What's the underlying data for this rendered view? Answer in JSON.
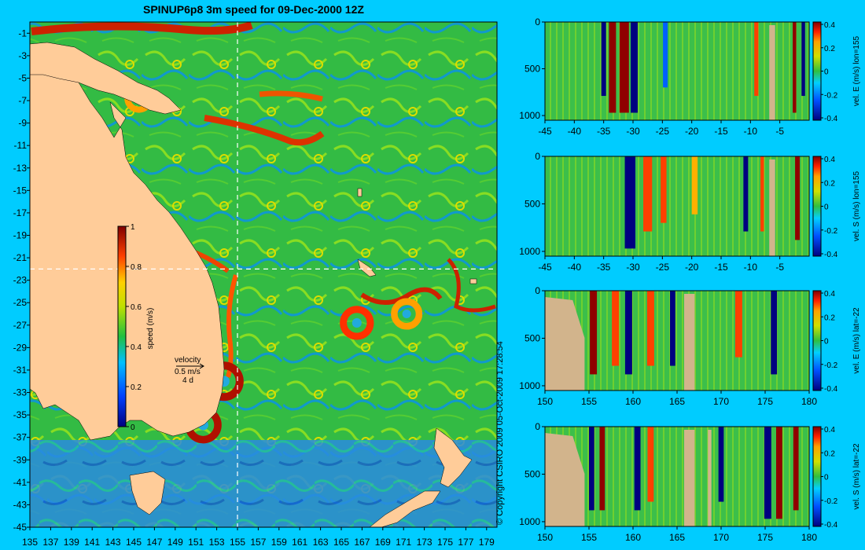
{
  "title": "SPINUP6p8 3m speed for 09-Dec-2000 12Z",
  "copyright": "© Copyright CSIRO 2009   05-Oct-2009 17:28:54",
  "colors": {
    "background": "#00ccff",
    "land": "#ffcc99",
    "section_land": "#d2b48c",
    "crosshair": "#ffffff"
  },
  "chart_data": [
    {
      "type": "heatmap",
      "name": "map",
      "title": "SPINUP6p8 3m speed for 09-Dec-2000 12Z",
      "xlim": [
        135,
        180
      ],
      "ylim": [
        -45,
        0
      ],
      "x_ticks": [
        "135",
        "137",
        "139",
        "141",
        "143",
        "145",
        "147",
        "149",
        "151",
        "153",
        "155",
        "157",
        "159",
        "161",
        "163",
        "165",
        "167",
        "169",
        "171",
        "173",
        "175",
        "177",
        "179"
      ],
      "y_ticks": [
        "-1",
        "-3",
        "-5",
        "-7",
        "-9",
        "-11",
        "-13",
        "-15",
        "-17",
        "-19",
        "-21",
        "-23",
        "-25",
        "-27",
        "-29",
        "-31",
        "-33",
        "-35",
        "-37",
        "-39",
        "-41",
        "-43",
        "-45"
      ],
      "crosshair": {
        "lon": 155,
        "lat": -22
      },
      "colorbar": {
        "label": "speed (m/s)",
        "min": 0,
        "max": 1,
        "ticks": [
          "1",
          "0.8",
          "0.6",
          "0.4",
          "0.2",
          "0"
        ]
      },
      "vector_legend": {
        "title": "velocity",
        "speed": "0.5 m/s",
        "duration": "4 d"
      },
      "features": [
        {
          "lon": 153.7,
          "lat": -32.0,
          "speed": 1.0
        },
        {
          "lon": 151.7,
          "lat": -35.9,
          "speed": 0.9
        },
        {
          "lon": 166.5,
          "lat": -26.8,
          "speed": 0.8
        },
        {
          "lon": 171.3,
          "lat": -26.0,
          "speed": 0.7
        },
        {
          "lon": 145.5,
          "lat": -6.8,
          "speed": 0.6
        },
        {
          "lon": 143.0,
          "lat": -12.5,
          "speed": 0.6
        }
      ]
    },
    {
      "type": "heatmap",
      "name": "section-1",
      "label": "vel. E (m/s) lon=155",
      "x_ticks": [
        "-45",
        "-40",
        "-35",
        "-30",
        "-25",
        "-20",
        "-15",
        "-10",
        "-5"
      ],
      "xlim": [
        -45,
        0
      ],
      "y_ticks": [
        "0",
        "500",
        "1000"
      ],
      "ylim": [
        0,
        1050
      ],
      "colorbar_ticks": [
        "0.4",
        "0.2",
        "0",
        "-0.2",
        "-0.4"
      ],
      "clim": [
        -0.4,
        0.4
      ],
      "bands": [
        {
          "x": -33.5,
          "w": 1.2,
          "v": 0.4
        },
        {
          "x": -31.5,
          "w": 1.6,
          "v": 0.4
        },
        {
          "x": -29.8,
          "w": 1.2,
          "v": -0.4
        },
        {
          "x": -35.0,
          "w": 0.8,
          "v": -0.3
        },
        {
          "x": -24.5,
          "w": 0.8,
          "v": -0.25
        },
        {
          "x": -9.0,
          "w": 0.7,
          "v": 0.3
        },
        {
          "x": -2.5,
          "w": 0.6,
          "v": 0.4
        },
        {
          "x": -1.0,
          "w": 0.6,
          "v": -0.3
        }
      ],
      "land": [
        {
          "x0": -6.8,
          "x1": -5.8
        }
      ]
    },
    {
      "type": "heatmap",
      "name": "section-2",
      "label": "vel. S (m/s) lon=155",
      "x_ticks": [
        "-45",
        "-40",
        "-35",
        "-30",
        "-25",
        "-20",
        "-15",
        "-10",
        "-5"
      ],
      "xlim": [
        -45,
        0
      ],
      "y_ticks": [
        "0",
        "500",
        "1000"
      ],
      "ylim": [
        0,
        1050
      ],
      "colorbar_ticks": [
        "0.4",
        "0.2",
        "0",
        "-0.2",
        "-0.4"
      ],
      "clim": [
        -0.4,
        0.4
      ],
      "bands": [
        {
          "x": -30.5,
          "w": 1.8,
          "v": -0.4
        },
        {
          "x": -27.5,
          "w": 1.5,
          "v": 0.3
        },
        {
          "x": -24.8,
          "w": 1.0,
          "v": 0.25
        },
        {
          "x": -19.5,
          "w": 1.0,
          "v": 0.2
        },
        {
          "x": -10.8,
          "w": 0.8,
          "v": -0.3
        },
        {
          "x": -8.0,
          "w": 0.6,
          "v": 0.3
        },
        {
          "x": -2.0,
          "w": 0.8,
          "v": 0.35
        }
      ],
      "land": [
        {
          "x0": -6.8,
          "x1": -5.8
        }
      ]
    },
    {
      "type": "heatmap",
      "name": "section-3",
      "label": "vel. E (m/s) lat=-22",
      "x_ticks": [
        "150",
        "155",
        "160",
        "165",
        "170",
        "175",
        "180"
      ],
      "xlim": [
        150,
        180
      ],
      "y_ticks": [
        "0",
        "500",
        "1000"
      ],
      "ylim": [
        0,
        1050
      ],
      "colorbar_ticks": [
        "0.4",
        "0.2",
        "0",
        "-0.2",
        "-0.4"
      ],
      "clim": [
        -0.4,
        0.4
      ],
      "bands": [
        {
          "x": 155.5,
          "w": 0.8,
          "v": 0.35
        },
        {
          "x": 158.0,
          "w": 0.8,
          "v": 0.3
        },
        {
          "x": 159.5,
          "w": 0.8,
          "v": -0.35
        },
        {
          "x": 162.0,
          "w": 0.8,
          "v": 0.3
        },
        {
          "x": 164.5,
          "w": 0.6,
          "v": -0.3
        },
        {
          "x": 172.0,
          "w": 0.8,
          "v": 0.25
        },
        {
          "x": 176.0,
          "w": 0.7,
          "v": -0.35
        }
      ],
      "land": [
        {
          "x0": 150,
          "x1": 154.5,
          "sloped": true
        },
        {
          "x0": 165.8,
          "x1": 167.0
        }
      ]
    },
    {
      "type": "heatmap",
      "name": "section-4",
      "label": "vel. S (m/s) lat=-22",
      "x_ticks": [
        "150",
        "155",
        "160",
        "165",
        "170",
        "175",
        "180"
      ],
      "xlim": [
        150,
        180
      ],
      "y_ticks": [
        "0",
        "500",
        "1000"
      ],
      "ylim": [
        0,
        1050
      ],
      "colorbar_ticks": [
        "0.4",
        "0.2",
        "0",
        "-0.2",
        "-0.4"
      ],
      "clim": [
        -0.4,
        0.4
      ],
      "bands": [
        {
          "x": 155.3,
          "w": 0.6,
          "v": -0.35
        },
        {
          "x": 156.5,
          "w": 0.6,
          "v": 0.35
        },
        {
          "x": 160.5,
          "w": 0.7,
          "v": -0.35
        },
        {
          "x": 162.0,
          "w": 0.7,
          "v": 0.3
        },
        {
          "x": 170.0,
          "w": 0.6,
          "v": -0.3
        },
        {
          "x": 175.3,
          "w": 0.8,
          "v": -0.4
        },
        {
          "x": 176.6,
          "w": 0.7,
          "v": 0.4
        },
        {
          "x": 178.5,
          "w": 0.6,
          "v": 0.35
        }
      ],
      "land": [
        {
          "x0": 150,
          "x1": 154.5,
          "sloped": true
        },
        {
          "x0": 165.8,
          "x1": 167.0
        },
        {
          "x0": 168.5,
          "x1": 168.9
        }
      ]
    }
  ]
}
